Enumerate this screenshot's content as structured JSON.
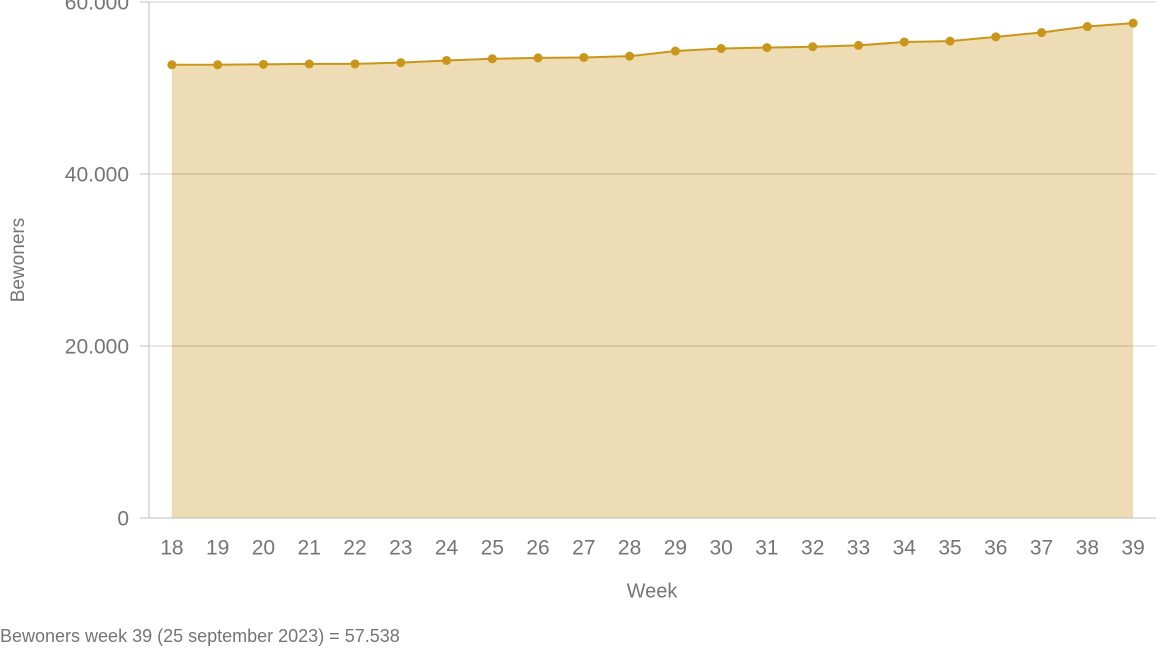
{
  "chart_data": {
    "type": "area",
    "x_label": "Week",
    "y_label": "Bewoners",
    "categories": [
      "18",
      "19",
      "20",
      "21",
      "22",
      "23",
      "24",
      "25",
      "26",
      "27",
      "28",
      "29",
      "30",
      "31",
      "32",
      "33",
      "34",
      "35",
      "36",
      "37",
      "38",
      "39"
    ],
    "values": [
      52700,
      52700,
      52750,
      52800,
      52800,
      52950,
      53200,
      53400,
      53500,
      53550,
      53700,
      54300,
      54600,
      54700,
      54800,
      54950,
      55350,
      55450,
      55950,
      56450,
      57150,
      57538
    ],
    "color": "#c9961a",
    "fill_color": "#eddcb4",
    "ylim": [
      0,
      60000
    ],
    "yticks": [
      0,
      {
        "value": 20000,
        "label": "20.000"
      },
      {
        "value": 40000,
        "label": "40.000"
      },
      {
        "value": 60000,
        "label": "60.000"
      }
    ],
    "grid": true
  },
  "footnote": "Bewoners week 39 (25 september 2023) = 57.538"
}
